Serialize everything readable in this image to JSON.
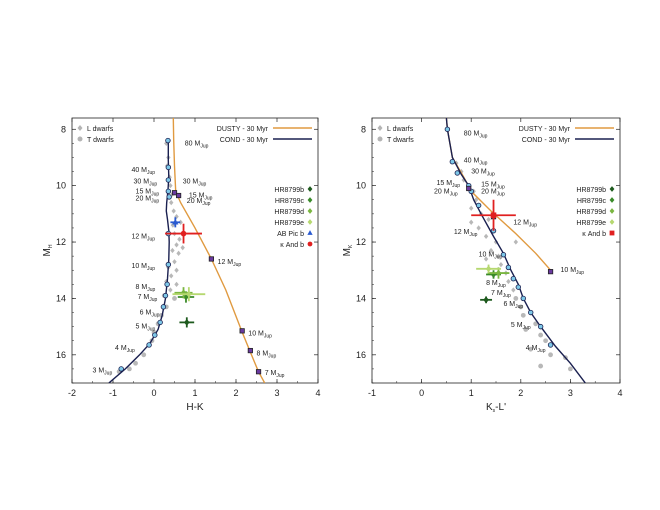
{
  "chart_data": [
    {
      "id": "left",
      "type": "scatter",
      "xlabel": "H-K",
      "ylabel": "M",
      "ylabel_sub": "H",
      "xlim": [
        -2,
        4
      ],
      "ylim": [
        17,
        7.6
      ],
      "xticks": [
        -2,
        -1,
        0,
        1,
        2,
        3,
        4
      ],
      "yticks": [
        8,
        10,
        12,
        14,
        16
      ],
      "legend_left": [
        {
          "label": "L dwarfs",
          "marker": "diamond",
          "color": "#b4b4b4"
        },
        {
          "label": "T dwarfs",
          "marker": "circle",
          "color": "#b4b4b4"
        }
      ],
      "legend_lines": [
        {
          "label": "DUSTY - 30 Myr",
          "color": "#e09a40"
        },
        {
          "label": "COND - 30 Myr",
          "color": "#1a2050"
        }
      ],
      "legend_objects": [
        {
          "label": "HR8799b",
          "marker": "diamond",
          "color": "#1e5a1e"
        },
        {
          "label": "HR8799c",
          "marker": "diamond",
          "color": "#3a8a2a"
        },
        {
          "label": "HR8799d",
          "marker": "diamond",
          "color": "#7ab640"
        },
        {
          "label": "HR8799e",
          "marker": "diamond",
          "color": "#b6d870"
        },
        {
          "label": "AB Pic b",
          "marker": "triangle",
          "color": "#2a5ad0"
        },
        {
          "label": "κ And b",
          "marker": "circle",
          "color": "#e02020"
        }
      ],
      "cond_curve": [
        [
          -1.1,
          17
        ],
        [
          -0.7,
          16.5
        ],
        [
          -0.35,
          16.0
        ],
        [
          -0.1,
          15.6
        ],
        [
          0.1,
          15.1
        ],
        [
          0.2,
          14.6
        ],
        [
          0.28,
          14.0
        ],
        [
          0.33,
          13.3
        ],
        [
          0.36,
          12.6
        ],
        [
          0.37,
          12.0
        ],
        [
          0.36,
          11.6
        ],
        [
          0.33,
          11.2
        ],
        [
          0.3,
          10.9
        ],
        [
          0.31,
          10.6
        ],
        [
          0.34,
          10.2
        ],
        [
          0.36,
          9.7
        ],
        [
          0.35,
          9.1
        ],
        [
          0.35,
          8.4
        ]
      ],
      "dusty_curve": [
        [
          0.47,
          7.6
        ],
        [
          0.48,
          8.4
        ],
        [
          0.5,
          9.3
        ],
        [
          0.53,
          10.2
        ],
        [
          0.65,
          10.6
        ],
        [
          1.0,
          11.5
        ],
        [
          1.4,
          12.6
        ],
        [
          1.75,
          13.7
        ],
        [
          2.15,
          15.2
        ],
        [
          2.35,
          15.9
        ],
        [
          2.55,
          16.6
        ],
        [
          2.7,
          17.0
        ]
      ],
      "cond_points": [
        [
          0.34,
          8.4
        ],
        [
          0.35,
          9.35
        ],
        [
          0.35,
          9.8
        ],
        [
          0.35,
          10.2
        ],
        [
          0.37,
          10.4
        ],
        [
          0.35,
          11.7
        ],
        [
          0.35,
          12.8
        ],
        [
          0.32,
          13.5
        ],
        [
          0.28,
          13.9
        ],
        [
          0.23,
          14.3
        ],
        [
          0.15,
          14.85
        ],
        [
          0.02,
          15.3
        ],
        [
          -0.12,
          15.65
        ],
        [
          -0.8,
          16.5
        ]
      ],
      "dusty_points": [
        [
          0.5,
          10.25
        ],
        [
          0.6,
          10.35
        ],
        [
          1.4,
          12.6
        ],
        [
          2.15,
          15.15
        ],
        [
          2.35,
          15.85
        ],
        [
          2.55,
          16.6
        ]
      ],
      "dwarfs": [
        [
          0.3,
          8.5
        ],
        [
          0.35,
          9.0
        ],
        [
          0.32,
          9.3
        ],
        [
          0.38,
          9.7
        ],
        [
          0.4,
          10.0
        ],
        [
          0.45,
          10.3
        ],
        [
          0.42,
          10.6
        ],
        [
          0.48,
          10.9
        ],
        [
          0.55,
          11.1
        ],
        [
          0.46,
          11.4
        ],
        [
          0.5,
          11.7
        ],
        [
          0.62,
          11.9
        ],
        [
          0.55,
          12.1
        ],
        [
          0.45,
          12.3
        ],
        [
          0.6,
          12.4
        ],
        [
          0.5,
          12.7
        ],
        [
          0.35,
          12.9
        ],
        [
          0.55,
          13.0
        ],
        [
          0.42,
          13.2
        ],
        [
          0.3,
          13.4
        ],
        [
          0.55,
          13.5
        ],
        [
          0.4,
          13.7
        ],
        [
          0.25,
          13.9
        ],
        [
          0.5,
          14.0
        ],
        [
          0.3,
          14.3
        ],
        [
          0.18,
          14.6
        ],
        [
          0.1,
          14.9
        ],
        [
          0.0,
          15.2
        ],
        [
          -0.05,
          15.5
        ],
        [
          -0.25,
          16.0
        ],
        [
          -0.45,
          16.3
        ],
        [
          -0.6,
          16.5
        ],
        [
          -0.85,
          16.6
        ],
        [
          0.7,
          12.2
        ],
        [
          0.65,
          11.3
        ]
      ],
      "objects": [
        {
          "name": "HR8799b",
          "x": 0.8,
          "y": 14.85,
          "xerr": 0.18,
          "yerr": 0.18,
          "color": "#1e5a1e",
          "marker": "diamond"
        },
        {
          "name": "HR8799c",
          "x": 0.78,
          "y": 13.95,
          "xerr": 0.2,
          "yerr": 0.2,
          "color": "#3a8a2a",
          "marker": "diamond"
        },
        {
          "name": "HR8799d",
          "x": 0.72,
          "y": 13.8,
          "xerr": 0.22,
          "yerr": 0.2,
          "color": "#7ab640",
          "marker": "diamond"
        },
        {
          "name": "HR8799e",
          "x": 0.85,
          "y": 13.85,
          "xerr": 0.4,
          "yerr": 0.25,
          "color": "#b6d870",
          "marker": "diamond"
        },
        {
          "name": "AB Pic b",
          "x": 0.52,
          "y": 11.3,
          "xerr": 0.12,
          "yerr": 0.18,
          "color": "#2a5ad0",
          "marker": "triangle"
        },
        {
          "name": "κ And b",
          "x": 0.72,
          "y": 11.7,
          "xerr": 0.45,
          "yerr": 0.35,
          "color": "#e02020",
          "marker": "circle"
        }
      ],
      "annotations": [
        {
          "main": "80 M",
          "sub": "Jup",
          "x": 0.75,
          "y": 8.5
        },
        {
          "main": "40 M",
          "sub": "Jup",
          "x": -0.55,
          "y": 9.45
        },
        {
          "main": "30 M",
          "sub": "Jup",
          "x": -0.5,
          "y": 9.85
        },
        {
          "main": "30 M",
          "sub": "Jup",
          "x": 0.7,
          "y": 9.85
        },
        {
          "main": "15 M",
          "sub": "Jup",
          "x": -0.45,
          "y": 10.2
        },
        {
          "main": "15 M",
          "sub": "Jup",
          "x": 0.85,
          "y": 10.35
        },
        {
          "main": "20 M",
          "sub": "Jup",
          "x": -0.45,
          "y": 10.45
        },
        {
          "main": "20 M",
          "sub": "Jup",
          "x": 0.8,
          "y": 10.55
        },
        {
          "main": "12 M",
          "sub": "Jup",
          "x": -0.55,
          "y": 11.8
        },
        {
          "main": "12 M",
          "sub": "Jup",
          "x": 1.55,
          "y": 12.7
        },
        {
          "main": "10 M",
          "sub": "Jup",
          "x": -0.55,
          "y": 12.85
        },
        {
          "main": "8 M",
          "sub": "Jup",
          "x": -0.45,
          "y": 13.6
        },
        {
          "main": "7 M",
          "sub": "Jup",
          "x": -0.4,
          "y": 13.95
        },
        {
          "main": "6 M",
          "sub": "Jup",
          "x": -0.35,
          "y": 14.5
        },
        {
          "main": "5 M",
          "sub": "Jup",
          "x": -0.45,
          "y": 15.0
        },
        {
          "main": "4 M",
          "sub": "Jup",
          "x": -0.95,
          "y": 15.75
        },
        {
          "main": "3 M",
          "sub": "Jup",
          "x": -1.5,
          "y": 16.55
        },
        {
          "main": "10 M",
          "sub": "Jup",
          "x": 2.3,
          "y": 15.25
        },
        {
          "main": "8 M",
          "sub": "Jup",
          "x": 2.5,
          "y": 15.95
        },
        {
          "main": "7 M",
          "sub": "Jup",
          "x": 2.7,
          "y": 16.65
        }
      ]
    },
    {
      "id": "right",
      "type": "scatter",
      "xlabel": "K",
      "xlabel_sub": "s",
      "xlabel_tail": "-L'",
      "ylabel": "M",
      "ylabel_sub": "K",
      "xlim": [
        -1,
        4
      ],
      "ylim": [
        17,
        7.6
      ],
      "xticks": [
        -1,
        0,
        1,
        2,
        3,
        4
      ],
      "yticks": [
        8,
        10,
        12,
        14,
        16
      ],
      "legend_left": [
        {
          "label": "L dwarfs",
          "marker": "diamond",
          "color": "#b4b4b4"
        },
        {
          "label": "T dwarfs",
          "marker": "circle",
          "color": "#b4b4b4"
        }
      ],
      "legend_lines": [
        {
          "label": "DUSTY - 30 Myr",
          "color": "#e09a40"
        },
        {
          "label": "COND - 30 Myr",
          "color": "#1a2050"
        }
      ],
      "legend_objects": [
        {
          "label": "HR8799b",
          "marker": "diamond",
          "color": "#1e5a1e"
        },
        {
          "label": "HR8799c",
          "marker": "diamond",
          "color": "#3a8a2a"
        },
        {
          "label": "HR8799d",
          "marker": "diamond",
          "color": "#7ab640"
        },
        {
          "label": "HR8799e",
          "marker": "diamond",
          "color": "#b6d870"
        },
        {
          "label": "κ And b",
          "marker": "square",
          "color": "#e02020"
        }
      ],
      "cond_curve": [
        [
          0.5,
          7.6
        ],
        [
          0.52,
          8.0
        ],
        [
          0.62,
          9.0
        ],
        [
          0.8,
          9.6
        ],
        [
          0.95,
          10.0
        ],
        [
          1.05,
          10.5
        ],
        [
          1.2,
          11.0
        ],
        [
          1.45,
          11.8
        ],
        [
          1.65,
          12.4
        ],
        [
          1.8,
          13.0
        ],
        [
          1.95,
          13.5
        ],
        [
          2.05,
          14.0
        ],
        [
          2.2,
          14.5
        ],
        [
          2.4,
          15.0
        ],
        [
          2.7,
          15.7
        ],
        [
          3.0,
          16.3
        ],
        [
          3.3,
          17.0
        ]
      ],
      "dusty_curve": [
        [
          0.5,
          7.6
        ],
        [
          0.52,
          8.0
        ],
        [
          0.62,
          9.0
        ],
        [
          0.85,
          9.7
        ],
        [
          1.0,
          10.2
        ],
        [
          1.4,
          10.9
        ],
        [
          1.9,
          11.7
        ],
        [
          2.3,
          12.4
        ],
        [
          2.6,
          13.0
        ]
      ],
      "cond_points": [
        [
          0.52,
          8.0
        ],
        [
          0.62,
          9.15
        ],
        [
          0.72,
          9.55
        ],
        [
          0.95,
          10.0
        ],
        [
          1.0,
          10.2
        ],
        [
          1.15,
          10.7
        ],
        [
          1.45,
          11.6
        ],
        [
          1.65,
          12.45
        ],
        [
          1.75,
          12.9
        ],
        [
          1.85,
          13.3
        ],
        [
          1.95,
          13.6
        ],
        [
          2.05,
          14.0
        ],
        [
          2.2,
          14.5
        ],
        [
          2.4,
          15.0
        ],
        [
          2.6,
          15.65
        ]
      ],
      "dusty_points": [
        [
          0.95,
          10.1
        ],
        [
          1.45,
          11.1
        ],
        [
          2.6,
          13.05
        ]
      ],
      "dwarfs": [
        [
          0.7,
          9.2
        ],
        [
          0.8,
          9.5
        ],
        [
          0.85,
          9.8
        ],
        [
          1.05,
          10.2
        ],
        [
          1.1,
          10.5
        ],
        [
          1.0,
          10.8
        ],
        [
          1.2,
          11.0
        ],
        [
          1.35,
          11.2
        ],
        [
          1.15,
          11.5
        ],
        [
          1.3,
          11.8
        ],
        [
          1.5,
          12.0
        ],
        [
          1.4,
          12.3
        ],
        [
          1.55,
          12.5
        ],
        [
          1.6,
          12.8
        ],
        [
          1.7,
          13.1
        ],
        [
          1.75,
          13.4
        ],
        [
          1.85,
          13.7
        ],
        [
          1.9,
          14.0
        ],
        [
          2.0,
          14.3
        ],
        [
          2.05,
          14.6
        ],
        [
          2.3,
          14.9
        ],
        [
          2.1,
          15.1
        ],
        [
          2.4,
          15.3
        ],
        [
          2.5,
          15.5
        ],
        [
          2.2,
          15.8
        ],
        [
          2.6,
          16.0
        ],
        [
          2.9,
          16.1
        ],
        [
          3.0,
          16.5
        ],
        [
          2.4,
          16.4
        ],
        [
          1.9,
          12.0
        ],
        [
          1.0,
          11.3
        ],
        [
          1.3,
          12.6
        ]
      ],
      "objects": [
        {
          "name": "HR8799b",
          "x": 1.3,
          "y": 14.05,
          "xerr": 0.12,
          "yerr": 0.12,
          "color": "#1e5a1e",
          "marker": "diamond"
        },
        {
          "name": "HR8799c",
          "x": 1.45,
          "y": 13.15,
          "xerr": 0.15,
          "yerr": 0.15,
          "color": "#3a8a2a",
          "marker": "diamond"
        },
        {
          "name": "HR8799d",
          "x": 1.55,
          "y": 13.1,
          "xerr": 0.22,
          "yerr": 0.2,
          "color": "#7ab640",
          "marker": "diamond"
        },
        {
          "name": "HR8799e",
          "x": 1.35,
          "y": 12.95,
          "xerr": 0.25,
          "yerr": 0.15,
          "color": "#b6d870",
          "marker": "diamond"
        },
        {
          "name": "κ And b",
          "x": 1.45,
          "y": 11.05,
          "xerr": 0.45,
          "yerr": 0.55,
          "color": "#e02020",
          "marker": "square"
        }
      ],
      "annotations": [
        {
          "main": "80 M",
          "sub": "Jup",
          "x": 0.85,
          "y": 8.15
        },
        {
          "main": "40 M",
          "sub": "Jup",
          "x": 0.85,
          "y": 9.1
        },
        {
          "main": "30 M",
          "sub": "Jup",
          "x": 1.0,
          "y": 9.5
        },
        {
          "main": "15 M",
          "sub": "Jup",
          "x": 0.3,
          "y": 9.9
        },
        {
          "main": "15 M",
          "sub": "Jup",
          "x": 1.2,
          "y": 9.95
        },
        {
          "main": "20 M",
          "sub": "Jup",
          "x": 0.25,
          "y": 10.2
        },
        {
          "main": "20 M",
          "sub": "Jup",
          "x": 1.2,
          "y": 10.2
        },
        {
          "main": "12 M",
          "sub": "Jup",
          "x": 1.85,
          "y": 11.3
        },
        {
          "main": "12 M",
          "sub": "Jup",
          "x": 0.65,
          "y": 11.65
        },
        {
          "main": "10 M",
          "sub": "Jup",
          "x": 1.15,
          "y": 12.45
        },
        {
          "main": "10 M",
          "sub": "Jup",
          "x": 2.8,
          "y": 13.0
        },
        {
          "main": "8 M",
          "sub": "Jup",
          "x": 1.3,
          "y": 13.45
        },
        {
          "main": "7 M",
          "sub": "Jup",
          "x": 1.4,
          "y": 13.8
        },
        {
          "main": "6 M",
          "sub": "Jup",
          "x": 1.65,
          "y": 14.2
        },
        {
          "main": "5 M",
          "sub": "Jup",
          "x": 1.8,
          "y": 14.95
        },
        {
          "main": "4 M",
          "sub": "Jup",
          "x": 2.1,
          "y": 15.75
        }
      ]
    }
  ]
}
